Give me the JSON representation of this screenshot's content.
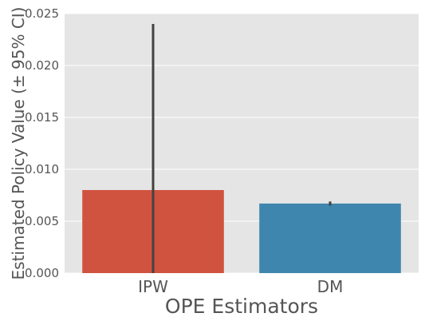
{
  "chart_data": {
    "type": "bar",
    "categories": [
      "IPW",
      "DM"
    ],
    "values": [
      0.008,
      0.0067
    ],
    "ci": [
      [
        0.0,
        0.024
      ],
      [
        0.0065,
        0.0069
      ]
    ],
    "xlabel": "OPE Estimators",
    "ylabel": "Estimated Policy Value (± 95% CI)",
    "ylim": [
      0,
      0.025
    ],
    "yticks": [
      0.0,
      0.005,
      0.01,
      0.015,
      0.02,
      0.025
    ],
    "ytick_labels": [
      "0.000",
      "0.005",
      "0.010",
      "0.015",
      "0.020",
      "0.025"
    ],
    "grid": true,
    "colors": {
      "bars": [
        "#d0533f",
        "#3e86ad"
      ],
      "background": "#e5e5e5",
      "grid": "#ffffff",
      "errorbar": "#424242",
      "text": "#555555"
    }
  }
}
